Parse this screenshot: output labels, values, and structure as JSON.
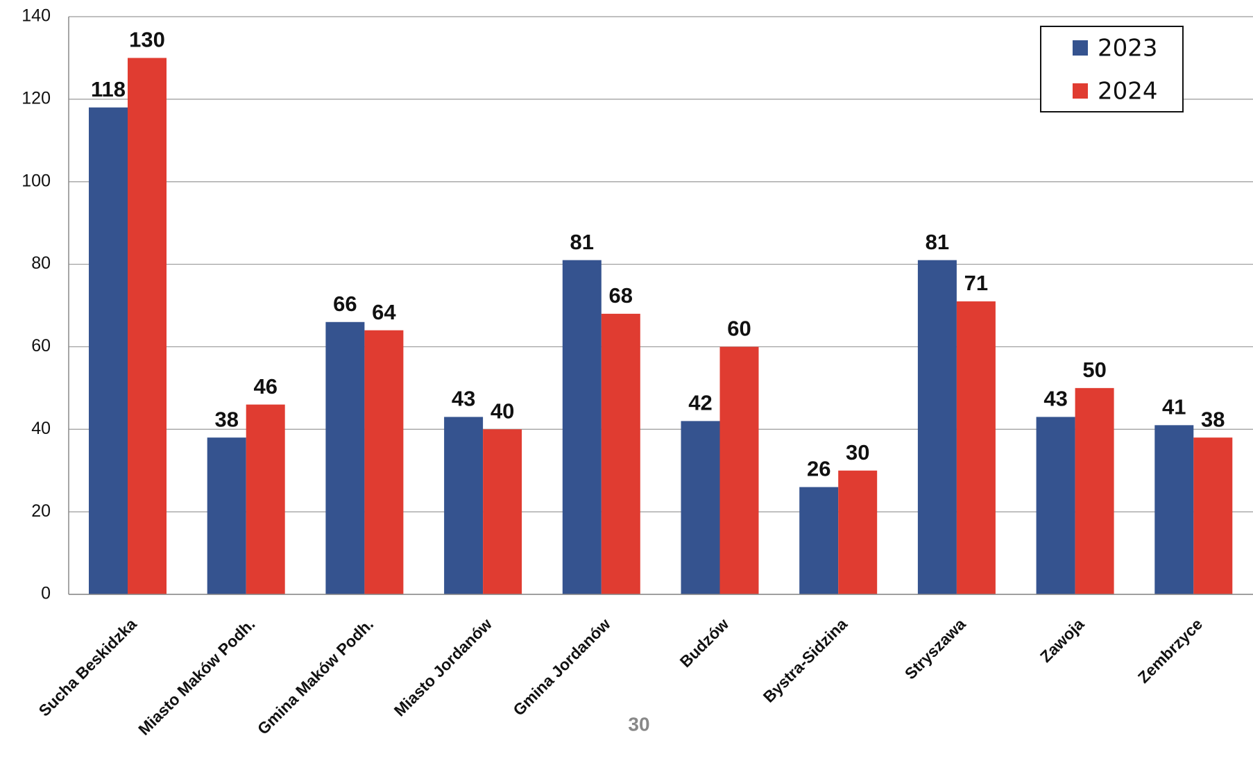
{
  "chart_data": {
    "type": "bar",
    "categories": [
      "Sucha Beskidzka",
      "Miasto Maków Podh.",
      "Gmina Maków Podh.",
      "Miasto Jordanów",
      "Gmina Jordanów",
      "Budzów",
      "Bystra-Sidzina",
      "Stryszawa",
      "Zawoja",
      "Zembrzyce"
    ],
    "series": [
      {
        "name": "2023",
        "color": "#35538f",
        "values": [
          118,
          38,
          66,
          43,
          81,
          42,
          26,
          81,
          43,
          41
        ]
      },
      {
        "name": "2024",
        "color": "#e03c31",
        "values": [
          130,
          46,
          64,
          40,
          68,
          60,
          30,
          71,
          50,
          38
        ]
      }
    ],
    "ylim": [
      0,
      140
    ],
    "yticks": [
      0,
      20,
      40,
      60,
      80,
      100,
      120,
      140
    ],
    "grid": true,
    "legend": "top-right"
  },
  "page_number": "30"
}
